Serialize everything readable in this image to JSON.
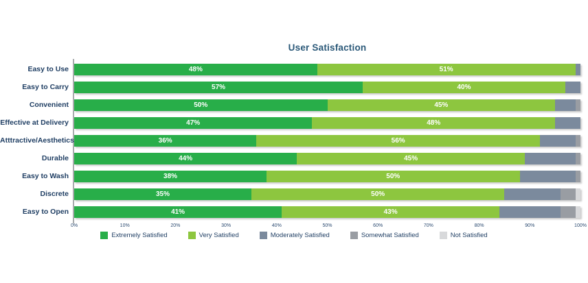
{
  "chart_data": {
    "type": "bar",
    "orientation": "horizontal",
    "stacked": true,
    "title": "User Satisfaction",
    "categories": [
      "Easy to Use",
      "Easy to Carry",
      "Convenient",
      "Effective at Delivery",
      "Atttractive/Aesthetics",
      "Durable",
      "Easy to Wash",
      "Discrete",
      "Easy to Open"
    ],
    "series": [
      {
        "name": "Extremely Satisfied",
        "color": "#28ae49",
        "values": [
          48,
          57,
          50,
          47,
          36,
          44,
          38,
          35,
          41
        ]
      },
      {
        "name": "Very Satisfied",
        "color": "#8dc63f",
        "values": [
          51,
          40,
          45,
          48,
          56,
          45,
          50,
          50,
          43
        ]
      },
      {
        "name": "Moderately Satisfied",
        "color": "#7b8a9d",
        "values": [
          1,
          3,
          4,
          5,
          7,
          10,
          11,
          11,
          12
        ]
      },
      {
        "name": "Somewhat Satisfied",
        "color": "#999da3",
        "values": [
          0,
          0,
          1,
          0,
          1,
          1,
          1,
          3,
          3
        ]
      },
      {
        "name": "Not Satisfied",
        "color": "#d8d9db",
        "values": [
          0,
          0,
          0,
          0,
          0,
          0,
          0,
          1,
          1
        ]
      }
    ],
    "x_ticks": [
      "0%",
      "10%",
      "20%",
      "30%",
      "40%",
      "50%",
      "60%",
      "70%",
      "80%",
      "90%",
      "100%"
    ],
    "xlim": [
      0,
      100
    ],
    "grid": false,
    "legend_position": "bottom",
    "data_labels": {
      "series_with_labels": [
        "Extremely Satisfied",
        "Very Satisfied"
      ],
      "format": "{value}%",
      "color": "#ffffff"
    }
  },
  "colors": {
    "title_text": "#2a5878",
    "category_text": "#1f3e63",
    "tick_text": "#2b4a70",
    "legend_text": "#1f3e63",
    "axis_line": "#a8abad",
    "background": "#ffffff"
  }
}
